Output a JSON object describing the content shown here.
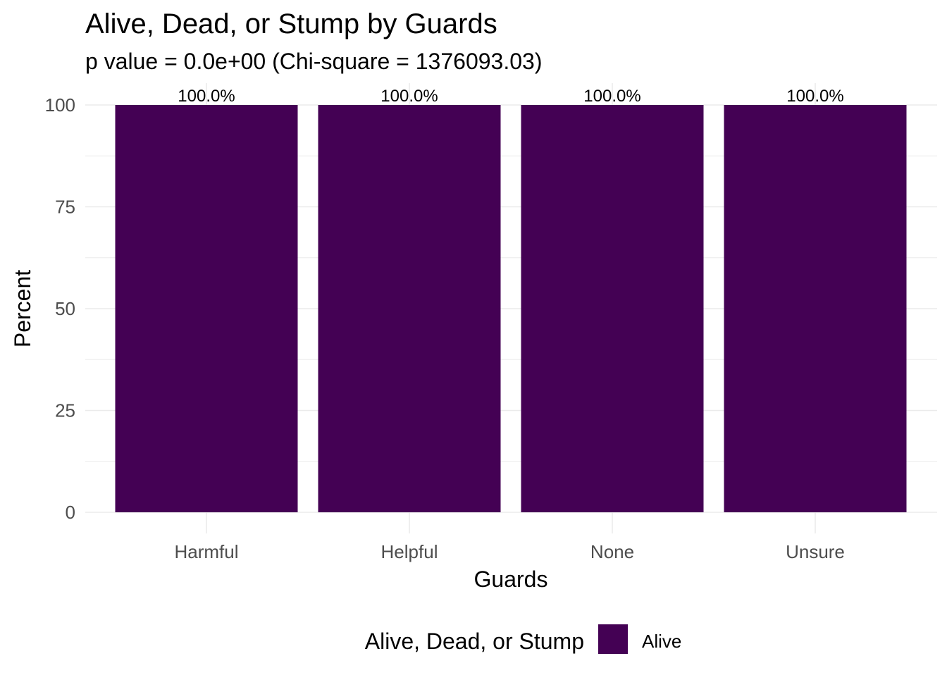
{
  "chart_data": {
    "type": "bar",
    "title": "Alive, Dead, or Stump by Guards",
    "subtitle": "p value = 0.0e+00 (Chi-square = 1376093.03)",
    "xlabel": "Guards",
    "ylabel": "Percent",
    "categories": [
      "Harmful",
      "Helpful",
      "None",
      "Unsure"
    ],
    "series": [
      {
        "name": "Alive",
        "values": [
          100,
          100,
          100,
          100
        ],
        "data_labels": [
          "100.0%",
          "100.0%",
          "100.0%",
          "100.0%"
        ],
        "color": "#440154"
      }
    ],
    "ylim": [
      0,
      100
    ],
    "yticks": [
      0,
      25,
      50,
      75,
      100
    ],
    "grid": true,
    "legend": {
      "title": "Alive, Dead, or Stump",
      "position": "bottom",
      "entries": [
        "Alive"
      ]
    }
  },
  "colors": {
    "bar": "#440154",
    "grid": "#ebebeb",
    "axis_text": "#4d4d4d",
    "title_text": "#000000"
  }
}
